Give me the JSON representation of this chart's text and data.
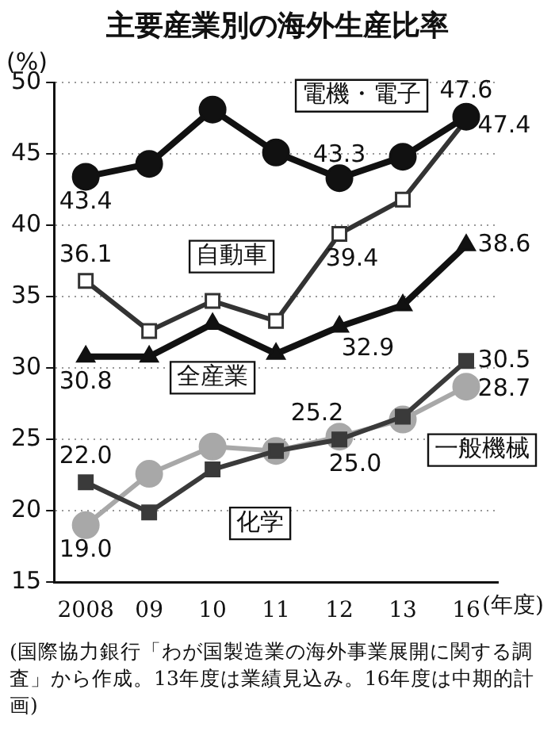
{
  "chart_data": {
    "type": "line",
    "title": "主要産業別の海外生産比率",
    "ylabel": "(%)",
    "xlabel": "(年度)",
    "categories": [
      "2008",
      "09",
      "10",
      "11",
      "12",
      "13",
      "16"
    ],
    "ylim": [
      15,
      50
    ],
    "yticks": [
      15,
      20,
      25,
      30,
      35,
      40,
      45,
      50
    ],
    "grid": "y",
    "legend": false,
    "series": [
      {
        "name": "電機・電子",
        "color": "#111111",
        "marker": "circle",
        "values": [
          43.4,
          44.3,
          48.1,
          45.1,
          43.3,
          44.8,
          47.6
        ],
        "value_labels": [
          "43.4",
          null,
          null,
          null,
          "43.3",
          null,
          "47.6"
        ]
      },
      {
        "name": "自動車",
        "color": "#333333",
        "marker": "square",
        "values": [
          36.1,
          32.6,
          34.7,
          33.3,
          39.4,
          41.8,
          47.4
        ],
        "value_labels": [
          "36.1",
          null,
          null,
          null,
          "39.4",
          null,
          "47.4"
        ]
      },
      {
        "name": "全産業",
        "color": "#111111",
        "marker": "triangle",
        "values": [
          30.8,
          30.8,
          33.1,
          31.0,
          32.9,
          34.4,
          38.6
        ],
        "value_labels": [
          "30.8",
          null,
          null,
          null,
          "32.9",
          null,
          "38.6"
        ]
      },
      {
        "name": "化学",
        "color": "#3a3a3a",
        "marker": "square",
        "values": [
          22.0,
          19.9,
          22.9,
          24.2,
          25.0,
          26.6,
          30.5
        ],
        "value_labels": [
          "22.0",
          null,
          null,
          null,
          "25.0",
          null,
          "30.5"
        ]
      },
      {
        "name": "一般機械",
        "color": "#a8a8a8",
        "marker": "circle",
        "values": [
          19.0,
          22.6,
          24.5,
          24.2,
          25.2,
          26.4,
          28.7
        ],
        "value_labels": [
          "19.0",
          null,
          null,
          null,
          "25.2",
          null,
          "28.7"
        ]
      }
    ],
    "annotations": [
      "(国際協力銀行「わが国製造業の海外事業展開に関する調査」から作成。13年度は業績見込み。16年度は中期的計画)"
    ]
  }
}
